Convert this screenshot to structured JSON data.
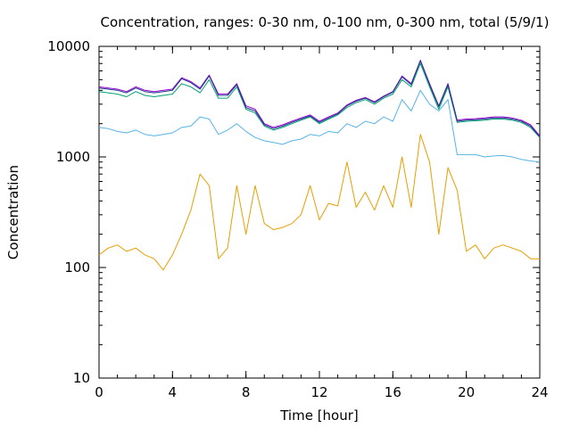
{
  "chart_data": {
    "type": "line",
    "title": "Concentration, ranges: 0-30 nm, 0-100 nm, 0-300 nm, total (5/9/1)",
    "xlabel": "Time [hour]",
    "ylabel": "Concentration",
    "xlim": [
      0,
      24
    ],
    "ylim": [
      10,
      10000
    ],
    "yscale": "log",
    "grid": false,
    "legend": "none",
    "xticks": [
      0,
      4,
      8,
      12,
      16,
      20,
      24
    ],
    "xtick_labels": [
      "0",
      "4",
      "8",
      "12",
      "16",
      "20",
      "24"
    ],
    "yticks": [
      10,
      100,
      1000,
      10000
    ],
    "ytick_labels": [
      "10",
      "100",
      "1000",
      "10000"
    ],
    "x": [
      0,
      0.5,
      1,
      1.5,
      2,
      2.5,
      3,
      3.5,
      4,
      4.5,
      5,
      5.5,
      6,
      6.5,
      7,
      7.5,
      8,
      8.5,
      9,
      9.5,
      10,
      10.5,
      11,
      11.5,
      12,
      12.5,
      13,
      13.5,
      14,
      14.5,
      15,
      15.5,
      16,
      16.5,
      17,
      17.5,
      18,
      18.5,
      19,
      19.5,
      20,
      20.5,
      21,
      21.5,
      22,
      22.5,
      23,
      23.5,
      24
    ],
    "series": [
      {
        "color": "#e69f00",
        "values": [
          130,
          150,
          160,
          140,
          150,
          130,
          120,
          95,
          130,
          200,
          330,
          700,
          550,
          120,
          150,
          550,
          200,
          550,
          250,
          220,
          230,
          250,
          300,
          550,
          270,
          380,
          360,
          900,
          350,
          480,
          330,
          550,
          350,
          1000,
          350,
          1600,
          900,
          200,
          800,
          500,
          140,
          160,
          120,
          150,
          160,
          150,
          140,
          120,
          120
        ]
      },
      {
        "color": "#56b4e9",
        "values": [
          1850,
          1800,
          1700,
          1650,
          1750,
          1600,
          1550,
          1600,
          1650,
          1850,
          1900,
          2300,
          2200,
          1600,
          1750,
          2000,
          1700,
          1500,
          1400,
          1350,
          1300,
          1400,
          1450,
          1600,
          1550,
          1700,
          1650,
          2000,
          1850,
          2100,
          2000,
          2300,
          2100,
          3300,
          2600,
          4000,
          3000,
          2600,
          3300,
          1050,
          1050,
          1050,
          1000,
          1020,
          1030,
          1000,
          950,
          920,
          900
        ]
      },
      {
        "color": "#009e73",
        "values": [
          3900,
          3800,
          3700,
          3500,
          3900,
          3600,
          3500,
          3600,
          3700,
          4600,
          4300,
          3800,
          5000,
          3400,
          3400,
          4300,
          2700,
          2500,
          1900,
          1750,
          1850,
          2000,
          2150,
          2300,
          2000,
          2200,
          2400,
          2800,
          3100,
          3300,
          3000,
          3400,
          3700,
          5000,
          4300,
          7000,
          4300,
          2700,
          4300,
          2050,
          2100,
          2120,
          2150,
          2200,
          2200,
          2150,
          2050,
          1850,
          1500
        ]
      },
      {
        "color": "#9400d3",
        "values": [
          4300,
          4200,
          4100,
          3900,
          4300,
          4000,
          3900,
          4000,
          4100,
          5200,
          4800,
          4200,
          5500,
          3700,
          3700,
          4600,
          2900,
          2700,
          2000,
          1850,
          1950,
          2100,
          2250,
          2400,
          2100,
          2300,
          2500,
          2950,
          3250,
          3450,
          3150,
          3550,
          3900,
          5400,
          4600,
          7500,
          4600,
          2900,
          4600,
          2150,
          2200,
          2220,
          2250,
          2300,
          2300,
          2250,
          2150,
          1950,
          1550
        ]
      },
      {
        "color": "#1f3a8a",
        "values": [
          4200,
          4100,
          4000,
          3800,
          4200,
          3900,
          3800,
          3900,
          4000,
          5100,
          4700,
          4100,
          5400,
          3600,
          3600,
          4500,
          2800,
          2600,
          1950,
          1800,
          1900,
          2050,
          2200,
          2350,
          2050,
          2250,
          2450,
          2900,
          3200,
          3400,
          3100,
          3500,
          3850,
          5300,
          4500,
          7400,
          4500,
          2850,
          4500,
          2100,
          2150,
          2170,
          2200,
          2250,
          2250,
          2200,
          2100,
          1900,
          1520
        ]
      }
    ]
  }
}
